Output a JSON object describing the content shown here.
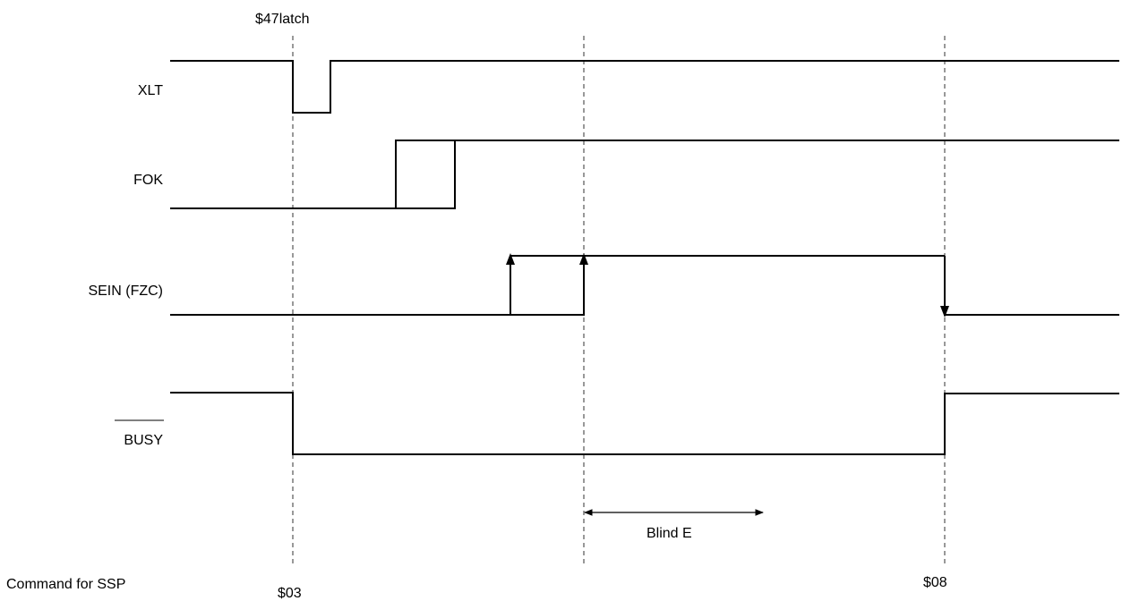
{
  "annotations": {
    "latch": "$47latch",
    "blind": "Blind E",
    "command_label": "Command for SSP",
    "cmd1": "$03",
    "cmd2": "$08"
  },
  "signals": {
    "xlt": "XLT",
    "fok": "FOK",
    "sein": "SEIN (FZC)",
    "busy": "BUSY"
  }
}
